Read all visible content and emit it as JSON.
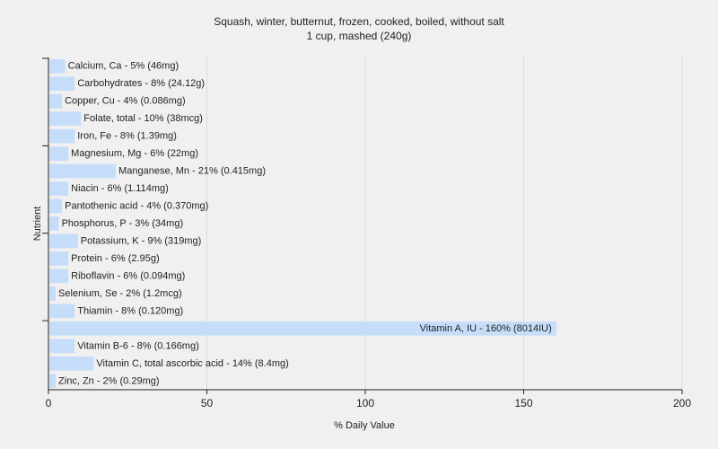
{
  "chart_data": {
    "type": "bar",
    "orientation": "horizontal",
    "title": "Squash, winter, butternut, frozen, cooked, boiled, without salt",
    "subtitle": "1 cup, mashed (240g)",
    "xlabel": "% Daily Value",
    "ylabel": "Nutrient",
    "xlim": [
      0,
      200
    ],
    "xticks": [
      0,
      50,
      100,
      150,
      200
    ],
    "grid": "vertical",
    "bar_color": "#c6ddfa",
    "categories": [
      "Calcium, Ca",
      "Carbohydrates",
      "Copper, Cu",
      "Folate, total",
      "Iron, Fe",
      "Magnesium, Mg",
      "Manganese, Mn",
      "Niacin",
      "Pantothenic acid",
      "Phosphorus, P",
      "Potassium, K",
      "Protein",
      "Riboflavin",
      "Selenium, Se",
      "Thiamin",
      "Vitamin A, IU",
      "Vitamin B-6",
      "Vitamin C, total ascorbic acid",
      "Zinc, Zn"
    ],
    "values": [
      5,
      8,
      4,
      10,
      8,
      6,
      21,
      6,
      4,
      3,
      9,
      6,
      6,
      2,
      8,
      160,
      8,
      14,
      2
    ],
    "labels": [
      "Calcium, Ca - 5% (46mg)",
      "Carbohydrates - 8% (24.12g)",
      "Copper, Cu - 4% (0.086mg)",
      "Folate, total - 10% (38mcg)",
      "Iron, Fe - 8% (1.39mg)",
      "Magnesium, Mg - 6% (22mg)",
      "Manganese, Mn - 21% (0.415mg)",
      "Niacin - 6% (1.114mg)",
      "Pantothenic acid - 4% (0.370mg)",
      "Phosphorus, P - 3% (34mg)",
      "Potassium, K - 9% (319mg)",
      "Protein - 6% (2.95g)",
      "Riboflavin - 6% (0.094mg)",
      "Selenium, Se - 2% (1.2mcg)",
      "Thiamin - 8% (0.120mg)",
      "Vitamin A, IU - 160% (8014IU)",
      "Vitamin B-6 - 8% (0.166mg)",
      "Vitamin C, total ascorbic acid - 14% (8.4mg)",
      "Zinc, Zn - 2% (0.29mg)"
    ]
  }
}
